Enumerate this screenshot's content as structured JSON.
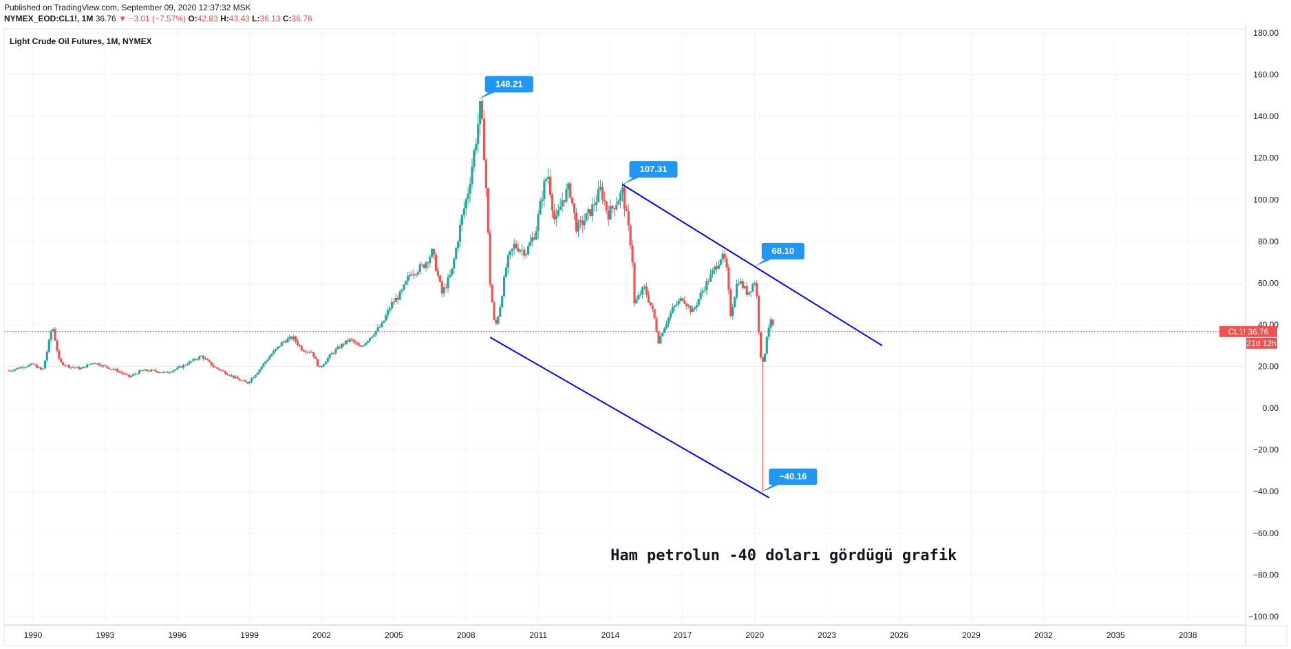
{
  "header": {
    "published": "Published on TradingView.com, September 09, 2020 12:37:32 MSK",
    "symbol": "NYMEX_EOD:CL1!, 1M",
    "last": "36.76",
    "change_arrow": "▼",
    "change": "−3.01 (−7.57%)",
    "o_label": "O:",
    "o_value": "42.83",
    "h_label": "H:",
    "h_value": "43.43",
    "l_label": "L:",
    "l_value": "36.13",
    "c_label": "C:",
    "c_value": "36.76"
  },
  "colors": {
    "up": "#26a69a",
    "down": "#ef5350",
    "trendline": "#0000ff",
    "callout": "#2196f3",
    "price_line": "#ef5350"
  },
  "chart_data": {
    "type": "candlestick",
    "title": "Light Crude Oil Futures, 1M, NYMEX",
    "annotation": "Ham petrolun -40 doları gördügü grafik",
    "x_ticks": [
      "1990",
      "1993",
      "1996",
      "1999",
      "2002",
      "2005",
      "2008",
      "2011",
      "2014",
      "2017",
      "2020",
      "2023",
      "2026",
      "2029",
      "2032",
      "2035",
      "2038"
    ],
    "x_range": [
      1988.8,
      2040.4
    ],
    "y_ticks": [
      "180.00",
      "160.00",
      "140.00",
      "120.00",
      "100.00",
      "80.00",
      "60.00",
      "40.00",
      "20.00",
      "0.00",
      "−20.00",
      "−40.00",
      "−60.00",
      "−80.00",
      "−100.00"
    ],
    "y_range": [
      -104,
      182
    ],
    "price_label": "CL1!",
    "price_value": "36.76",
    "countdown": "21d 12h",
    "last_price": 36.76,
    "price_path": [
      [
        1989.0,
        18
      ],
      [
        1989.6,
        20
      ],
      [
        1990.0,
        21
      ],
      [
        1990.4,
        18
      ],
      [
        1990.6,
        28
      ],
      [
        1990.8,
        40
      ],
      [
        1991.1,
        22
      ],
      [
        1991.5,
        20
      ],
      [
        1992.0,
        19
      ],
      [
        1992.5,
        22
      ],
      [
        1993.0,
        20
      ],
      [
        1993.5,
        18
      ],
      [
        1994.0,
        15
      ],
      [
        1994.5,
        18
      ],
      [
        1995.0,
        18
      ],
      [
        1995.5,
        17
      ],
      [
        1996.0,
        19
      ],
      [
        1996.5,
        22
      ],
      [
        1997.0,
        25
      ],
      [
        1997.5,
        20
      ],
      [
        1998.0,
        17
      ],
      [
        1998.5,
        14
      ],
      [
        1998.9,
        12
      ],
      [
        1999.3,
        17
      ],
      [
        1999.7,
        23
      ],
      [
        2000.0,
        27
      ],
      [
        2000.4,
        32
      ],
      [
        2000.8,
        34
      ],
      [
        2001.2,
        28
      ],
      [
        2001.6,
        27
      ],
      [
        2001.9,
        19
      ],
      [
        2002.4,
        26
      ],
      [
        2002.9,
        31
      ],
      [
        2003.2,
        33
      ],
      [
        2003.6,
        29
      ],
      [
        2004.0,
        34
      ],
      [
        2004.5,
        40
      ],
      [
        2004.9,
        50
      ],
      [
        2005.3,
        55
      ],
      [
        2005.7,
        65
      ],
      [
        2006.2,
        68
      ],
      [
        2006.6,
        75
      ],
      [
        2007.0,
        55
      ],
      [
        2007.4,
        65
      ],
      [
        2007.8,
        90
      ],
      [
        2008.1,
        105
      ],
      [
        2008.4,
        128
      ],
      [
        2008.6,
        145
      ],
      [
        2008.8,
        115
      ],
      [
        2009.0,
        60
      ],
      [
        2009.2,
        38
      ],
      [
        2009.4,
        48
      ],
      [
        2009.7,
        70
      ],
      [
        2010.0,
        78
      ],
      [
        2010.5,
        75
      ],
      [
        2010.9,
        85
      ],
      [
        2011.2,
        105
      ],
      [
        2011.4,
        113
      ],
      [
        2011.7,
        88
      ],
      [
        2012.0,
        100
      ],
      [
        2012.3,
        106
      ],
      [
        2012.6,
        86
      ],
      [
        2012.9,
        90
      ],
      [
        2013.2,
        95
      ],
      [
        2013.6,
        105
      ],
      [
        2013.9,
        93
      ],
      [
        2014.3,
        100
      ],
      [
        2014.5,
        104
      ],
      [
        2014.9,
        75
      ],
      [
        2015.0,
        50
      ],
      [
        2015.4,
        58
      ],
      [
        2015.8,
        45
      ],
      [
        2016.0,
        32
      ],
      [
        2016.2,
        38
      ],
      [
        2016.6,
        48
      ],
      [
        2017.0,
        53
      ],
      [
        2017.4,
        46
      ],
      [
        2017.9,
        58
      ],
      [
        2018.2,
        64
      ],
      [
        2018.6,
        73
      ],
      [
        2018.8,
        70
      ],
      [
        2019.0,
        45
      ],
      [
        2019.3,
        62
      ],
      [
        2019.7,
        55
      ],
      [
        2020.0,
        61
      ],
      [
        2020.1,
        52
      ],
      [
        2020.2,
        30
      ],
      [
        2020.3,
        20
      ],
      [
        2020.4,
        25
      ],
      [
        2020.5,
        35
      ],
      [
        2020.6,
        40
      ],
      [
        2020.7,
        42
      ],
      [
        2020.8,
        37
      ]
    ],
    "trendlines": [
      {
        "from": [
          2014.5,
          107.31
        ],
        "to": [
          2025.3,
          30
        ]
      },
      {
        "from": [
          2009.0,
          34
        ],
        "to": [
          2020.6,
          -43
        ]
      }
    ],
    "callouts": [
      {
        "label": "148.21",
        "at": [
          2008.5,
          148.21
        ]
      },
      {
        "label": "107.31",
        "at": [
          2014.5,
          107.31
        ]
      },
      {
        "label": "68.10",
        "at": [
          2020.0,
          68.1
        ]
      },
      {
        "label": "−40.16",
        "at": [
          2020.3,
          -40.16
        ]
      }
    ],
    "spike_low": -40.16,
    "grid": true
  }
}
